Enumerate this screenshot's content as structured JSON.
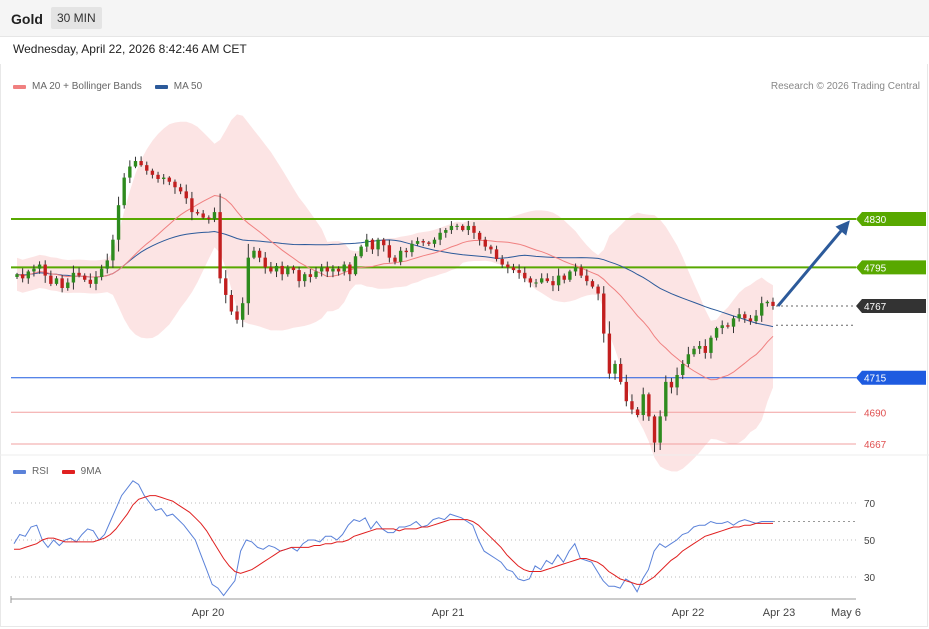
{
  "header": {
    "instrument": "Gold",
    "timeframe": "30 MIN"
  },
  "timestamp": "Wednesday, April 22, 2026 8:42:46 AM CET",
  "legend": {
    "ma20_bb": {
      "label": "MA 20 + Bollinger Bands",
      "color": "#f08080"
    },
    "ma50": {
      "label": "MA 50",
      "color": "#2c5a9a"
    }
  },
  "credit": "Research © 2026 Trading Central",
  "rsi_legend": {
    "rsi": {
      "label": "RSI",
      "color": "#5b82d9"
    },
    "ma9": {
      "label": "9MA",
      "color": "#e02020"
    }
  },
  "levels": [
    {
      "value": 4830,
      "label": "4830",
      "role": "resistance",
      "color": "#58a800"
    },
    {
      "value": 4795,
      "label": "4795",
      "role": "resistance",
      "color": "#58a800"
    },
    {
      "value": 4767,
      "label": "4767",
      "role": "last-price",
      "color": "#333333"
    },
    {
      "value": 4715,
      "label": "4715",
      "role": "pivot",
      "color": "#1e5be0"
    },
    {
      "value": 4690,
      "label": "4690",
      "role": "support",
      "color": "#e05050"
    },
    {
      "value": 4667,
      "label": "4667",
      "role": "support",
      "color": "#e05050"
    }
  ],
  "rsi_ticks": [
    "70",
    "50",
    "30"
  ],
  "x_axis_labels": [
    "Apr 20",
    "Apr 21",
    "Apr 22",
    "Apr 23",
    "May 6"
  ],
  "forecast_arrow": {
    "from": 4767,
    "to": 4830
  },
  "chart_data": [
    {
      "type": "candlestick",
      "instrument": "Gold",
      "timeframe": "30 MIN",
      "y_range": [
        4665,
        4889
      ],
      "x_ticks": [
        "Apr 20",
        "Apr 21",
        "Apr 22",
        "Apr 23",
        "May 6"
      ],
      "closes": [
        4790,
        4787,
        4792,
        4794,
        4797,
        4789,
        4783,
        4787,
        4780,
        4784,
        4791,
        4789,
        4786,
        4783,
        4788,
        4794,
        4800,
        4815,
        4840,
        4860,
        4868,
        4872,
        4869,
        4865,
        4862,
        4859,
        4860,
        4857,
        4853,
        4850,
        4845,
        4835,
        4834,
        4831,
        4830,
        4835,
        4787,
        4775,
        4763,
        4757,
        4769,
        4802,
        4807,
        4802,
        4795,
        4792,
        4796,
        4790,
        4795,
        4793,
        4785,
        4790,
        4788,
        4792,
        4795,
        4792,
        4794,
        4792,
        4797,
        4790,
        4803,
        4810,
        4815,
        4808,
        4815,
        4811,
        4802,
        4799,
        4807,
        4806,
        4812,
        4814,
        4813,
        4812,
        4815,
        4820,
        4822,
        4825,
        4825,
        4822,
        4825,
        4820,
        4815,
        4810,
        4808,
        4801,
        4797,
        4795,
        4793,
        4791,
        4787,
        4784,
        4784,
        4787,
        4785,
        4782,
        4789,
        4786,
        4792,
        4795,
        4789,
        4785,
        4781,
        4776,
        4747,
        4718,
        4725,
        4712,
        4698,
        4692,
        4688,
        4703,
        4687,
        4668,
        4687,
        4712,
        4708,
        4717,
        4725,
        4732,
        4736,
        4738,
        4733,
        4744,
        4751,
        4753,
        4752,
        4758,
        4761,
        4758,
        4756,
        4760,
        4769,
        4770,
        4767
      ],
      "ma20_last": 4740,
      "ma50_last": 4753,
      "bollinger_last": {
        "upper": 4788,
        "lower": 4693
      }
    },
    {
      "type": "line",
      "name": "RSI",
      "y_ticks": [
        30,
        50,
        70
      ],
      "series": [
        {
          "name": "RSI",
          "values": [
            48,
            53,
            52,
            57,
            58,
            50,
            46,
            50,
            47,
            50,
            51,
            49,
            53,
            56,
            55,
            50,
            53,
            60,
            67,
            74,
            78,
            82,
            80,
            74,
            70,
            66,
            67,
            63,
            64,
            61,
            58,
            54,
            50,
            42,
            34,
            26,
            24,
            20,
            24,
            28,
            44,
            50,
            49,
            46,
            45,
            47,
            46,
            44,
            45,
            46,
            44,
            48,
            50,
            50,
            49,
            52,
            52,
            50,
            53,
            58,
            61,
            60,
            62,
            56,
            60,
            56,
            54,
            54,
            57,
            57,
            58,
            60,
            57,
            58,
            61,
            62,
            61,
            64,
            63,
            62,
            60,
            58,
            50,
            44,
            42,
            40,
            38,
            34,
            33,
            29,
            28,
            29,
            36,
            34,
            39,
            37,
            42,
            38,
            44,
            48,
            40,
            39,
            38,
            33,
            28,
            25,
            25,
            24,
            29,
            27,
            22,
            29,
            34,
            44,
            48,
            46,
            48,
            50,
            53,
            54,
            57,
            58,
            58,
            60,
            59,
            59,
            60,
            58,
            60,
            61,
            60,
            59,
            60,
            60,
            60
          ]
        },
        {
          "name": "9MA",
          "values": [
            45,
            45,
            46,
            47,
            48,
            50,
            51,
            51,
            50,
            49,
            49,
            49,
            49,
            49,
            49,
            50,
            51,
            53,
            56,
            60,
            64,
            69,
            72,
            73,
            74,
            74,
            73,
            72,
            71,
            69,
            67,
            65,
            62,
            59,
            55,
            50,
            45,
            40,
            36,
            33,
            32,
            33,
            34,
            36,
            38,
            40,
            42,
            44,
            45,
            46,
            46,
            46,
            46,
            47,
            47,
            48,
            48,
            49,
            49,
            50,
            52,
            53,
            54,
            55,
            56,
            56,
            56,
            56,
            55,
            56,
            56,
            56,
            57,
            57,
            58,
            59,
            60,
            61,
            61,
            61,
            61,
            60,
            58,
            55,
            52,
            49,
            46,
            42,
            39,
            36,
            34,
            33,
            33,
            33,
            34,
            35,
            36,
            37,
            38,
            39,
            40,
            40,
            39,
            38,
            36,
            33,
            31,
            29,
            28,
            27,
            26,
            26,
            28,
            30,
            33,
            36,
            39,
            41,
            44,
            46,
            48,
            50,
            52,
            53,
            54,
            55,
            56,
            57,
            57,
            58,
            58,
            59,
            59,
            59,
            59
          ]
        }
      ]
    }
  ]
}
